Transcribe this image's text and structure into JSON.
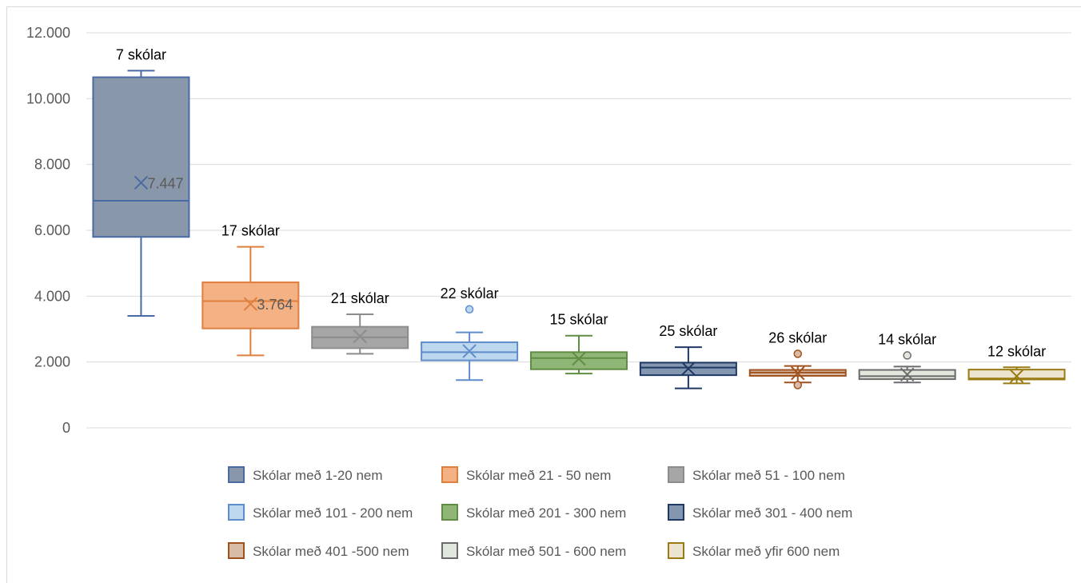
{
  "chart_data": {
    "type": "box",
    "title": "",
    "xlabel": "",
    "ylabel": "",
    "ylim": [
      0,
      12000
    ],
    "yticks": [
      0,
      2000,
      4000,
      6000,
      8000,
      10000,
      12000
    ],
    "ytick_labels": [
      "0",
      "2.000",
      "4.000",
      "6.000",
      "8.000",
      "10.000",
      "12.000"
    ],
    "grid": true,
    "legend_position": "bottom",
    "series": [
      {
        "name": "Skólar með 1-20 nem",
        "count_label": "7 skólar",
        "min": 3400,
        "q1": 5800,
        "median": 6900,
        "q3": 10650,
        "max": 10850,
        "mean": 7447,
        "mean_label": "7.447",
        "outliers": [],
        "fill": "#8997aa",
        "stroke": "#4a6aa6"
      },
      {
        "name": "Skólar með 21 - 50 nem",
        "count_label": "17 skólar",
        "min": 2200,
        "q1": 3020,
        "median": 3850,
        "q3": 4420,
        "max": 5500,
        "mean": 3764,
        "mean_label": "3.764",
        "outliers": [],
        "fill": "#f4b183",
        "stroke": "#de7f3f"
      },
      {
        "name": "Skólar með 51 - 100 nem",
        "count_label": "21 skólar",
        "min": 2250,
        "q1": 2420,
        "median": 2750,
        "q3": 3070,
        "max": 3450,
        "mean": 2780,
        "outliers": [],
        "fill": "#a6a6a6",
        "stroke": "#8c8c8c"
      },
      {
        "name": "Skólar með 101 - 200 nem",
        "count_label": "22 skólar",
        "min": 1450,
        "q1": 2050,
        "median": 2300,
        "q3": 2600,
        "max": 2900,
        "mean": 2330,
        "outliers": [
          3600
        ],
        "fill": "#bdd7ee",
        "stroke": "#5f8dcb"
      },
      {
        "name": "Skólar með 201 - 300 nem",
        "count_label": "15 skólar",
        "min": 1650,
        "q1": 1780,
        "median": 2120,
        "q3": 2300,
        "max": 2800,
        "mean": 2100,
        "outliers": [],
        "fill": "#8fb676",
        "stroke": "#5f8d42"
      },
      {
        "name": "Skólar með 301 - 400 nem",
        "count_label": "25 skólar",
        "min": 1200,
        "q1": 1600,
        "median": 1830,
        "q3": 1980,
        "max": 2450,
        "mean": 1800,
        "outliers": [],
        "fill": "#8497b0",
        "stroke": "#203864"
      },
      {
        "name": "Skólar með 401 -500 nem",
        "count_label": "26 skólar",
        "min": 1380,
        "q1": 1580,
        "median": 1680,
        "q3": 1760,
        "max": 1880,
        "mean": 1660,
        "outliers": [
          2250,
          1300
        ],
        "fill": "#d8bca8",
        "stroke": "#a0521e"
      },
      {
        "name": "Skólar með 501 - 600 nem",
        "count_label": "14 skólar",
        "min": 1380,
        "q1": 1480,
        "median": 1570,
        "q3": 1760,
        "max": 1860,
        "mean": 1620,
        "outliers": [
          2200
        ],
        "fill": "#e2e7dd",
        "stroke": "#6b6b6b"
      },
      {
        "name": "Skólar með yfir 600 nem",
        "count_label": "12 skólar",
        "min": 1350,
        "q1": 1470,
        "median": 1500,
        "q3": 1770,
        "max": 1840,
        "mean": 1570,
        "outliers": [],
        "fill": "#ede4cf",
        "stroke": "#9a7b12"
      }
    ]
  }
}
